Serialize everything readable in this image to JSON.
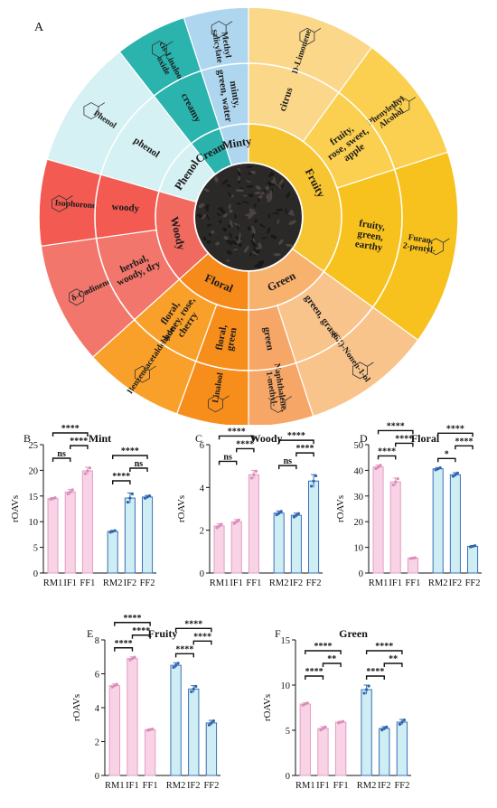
{
  "panel_a_letter": "A",
  "wheel": {
    "segments": [
      {
        "category": "Fruity",
        "color": "#f7c531",
        "compounds": [
          {
            "name": "D-Limonene",
            "descriptor": "citrus",
            "color": "#fbd78a"
          },
          {
            "name": "Phenylethyl Alcohol",
            "descriptor": "fruity, rose, sweet, apple",
            "color": "#fbd050"
          },
          {
            "name": "Furan, 2-pentyl-",
            "descriptor": "fruity, green, earthy",
            "color": "#f8c21e"
          }
        ]
      },
      {
        "category": "Green",
        "color": "#f7b26e",
        "compounds": [
          {
            "name": "(6Z)-Nonen-1-ol",
            "descriptor": "green, grass",
            "color": "#f9c48b"
          },
          {
            "name": "Naphthalene, 1-methyl-",
            "descriptor": "green",
            "color": "#f6a666"
          }
        ]
      },
      {
        "category": "Floral",
        "color": "#f68a1a",
        "compounds": [
          {
            "name": "Linalool",
            "descriptor": "floral, green",
            "color": "#f78e1c"
          },
          {
            "name": "Benzeneacetaldehyde",
            "descriptor": "floral, honey, rose, cherry",
            "color": "#f9a02a"
          }
        ]
      },
      {
        "category": "Woody",
        "color": "#f16a60",
        "compounds": [
          {
            "name": "δ-Cadinene",
            "descriptor": "herbal, woody, dry",
            "color": "#f2766b"
          },
          {
            "name": "Isophorone",
            "descriptor": "woody",
            "color": "#f25a52"
          }
        ]
      },
      {
        "category": "Phenol",
        "color": "#d6f1f3",
        "compounds": [
          {
            "name": "Phenol",
            "descriptor": "phenol",
            "color": "#d6f1f3"
          }
        ]
      },
      {
        "category": "Creamy",
        "color": "#2bb3ae",
        "compounds": [
          {
            "name": "cis-Linalool oxide",
            "descriptor": "creamy",
            "color": "#2bb3ae"
          }
        ]
      },
      {
        "category": "Minty",
        "color": "#aed7ef",
        "compounds": [
          {
            "name": "Methyl salicylate",
            "descriptor": "minty, green, water",
            "color": "#aed7ef"
          }
        ]
      }
    ]
  },
  "chart_data": [
    {
      "panel": "B",
      "title": "Mint",
      "type": "bar",
      "ylabel": "rOAVs",
      "ylim": [
        0,
        25
      ],
      "yticks": [
        0,
        5,
        10,
        15,
        20,
        25
      ],
      "categories": [
        "RM1",
        "IF1",
        "FF1",
        "RM2",
        "IF2",
        "FF2"
      ],
      "series": [
        {
          "values": [
            14.5,
            15.8,
            19.9,
            8.1,
            14.6,
            14.8
          ],
          "errors": [
            0.2,
            0.5,
            0.7,
            0.2,
            1.0,
            0.3
          ]
        }
      ],
      "significance": [
        {
          "pair": [
            "RM1",
            "IF1"
          ],
          "label": "ns"
        },
        {
          "pair": [
            "RM1",
            "FF1"
          ],
          "label": "****"
        },
        {
          "pair": [
            "IF1",
            "FF1"
          ],
          "label": "****"
        },
        {
          "pair": [
            "RM2",
            "IF2"
          ],
          "label": "****"
        },
        {
          "pair": [
            "RM2",
            "FF2"
          ],
          "label": "****"
        },
        {
          "pair": [
            "IF2",
            "FF2"
          ],
          "label": "ns"
        }
      ]
    },
    {
      "panel": "C",
      "title": "Woody",
      "type": "bar",
      "ylabel": "rOAVs",
      "ylim": [
        0,
        6
      ],
      "yticks": [
        0,
        2,
        4,
        6
      ],
      "categories": [
        "RM1",
        "IF1",
        "FF1",
        "RM2",
        "IF2",
        "FF2"
      ],
      "series": [
        {
          "values": [
            2.2,
            2.4,
            4.6,
            2.8,
            2.7,
            4.3
          ],
          "errors": [
            0.1,
            0.1,
            0.2,
            0.1,
            0.1,
            0.3
          ]
        }
      ],
      "significance": [
        {
          "pair": [
            "RM1",
            "IF1"
          ],
          "label": "ns"
        },
        {
          "pair": [
            "RM1",
            "FF1"
          ],
          "label": "****"
        },
        {
          "pair": [
            "IF1",
            "FF1"
          ],
          "label": "****"
        },
        {
          "pair": [
            "RM2",
            "IF2"
          ],
          "label": "ns"
        },
        {
          "pair": [
            "RM2",
            "FF2"
          ],
          "label": "****"
        },
        {
          "pair": [
            "IF2",
            "FF2"
          ],
          "label": "****"
        }
      ]
    },
    {
      "panel": "D",
      "title": "Floral",
      "type": "bar",
      "ylabel": "rOAVs",
      "ylim": [
        0,
        50
      ],
      "yticks": [
        0,
        10,
        20,
        30,
        40,
        50
      ],
      "categories": [
        "RM1",
        "IF1",
        "FF1",
        "RM2",
        "IF2",
        "FF2"
      ],
      "series": [
        {
          "values": [
            41.3,
            35.5,
            5.8,
            40.6,
            38.3,
            10.4
          ],
          "errors": [
            0.8,
            1.5,
            0.2,
            0.5,
            0.8,
            0.3
          ]
        }
      ],
      "significance": [
        {
          "pair": [
            "RM1",
            "IF1"
          ],
          "label": "****"
        },
        {
          "pair": [
            "RM1",
            "FF1"
          ],
          "label": "****"
        },
        {
          "pair": [
            "IF1",
            "FF1"
          ],
          "label": "****"
        },
        {
          "pair": [
            "RM2",
            "IF2"
          ],
          "label": "*"
        },
        {
          "pair": [
            "RM2",
            "FF2"
          ],
          "label": "****"
        },
        {
          "pair": [
            "IF2",
            "FF2"
          ],
          "label": "****"
        }
      ]
    },
    {
      "panel": "E",
      "title": "Fruity",
      "type": "bar",
      "ylabel": "rOAVs",
      "ylim": [
        0,
        8
      ],
      "yticks": [
        0,
        2,
        4,
        6,
        8
      ],
      "categories": [
        "RM1",
        "IF1",
        "FF1",
        "RM2",
        "IF2",
        "FF2"
      ],
      "series": [
        {
          "values": [
            5.3,
            6.9,
            2.7,
            6.5,
            5.1,
            3.1
          ],
          "errors": [
            0.1,
            0.1,
            0.05,
            0.15,
            0.2,
            0.15
          ]
        }
      ],
      "significance": [
        {
          "pair": [
            "RM1",
            "IF1"
          ],
          "label": "****"
        },
        {
          "pair": [
            "RM1",
            "FF1"
          ],
          "label": "****"
        },
        {
          "pair": [
            "IF1",
            "FF1"
          ],
          "label": "****"
        },
        {
          "pair": [
            "RM2",
            "IF2"
          ],
          "label": "****"
        },
        {
          "pair": [
            "RM2",
            "FF2"
          ],
          "label": "****"
        },
        {
          "pair": [
            "IF2",
            "FF2"
          ],
          "label": "****"
        }
      ]
    },
    {
      "panel": "F",
      "title": "Green",
      "type": "bar",
      "ylabel": "rOAVs",
      "ylim": [
        0,
        15
      ],
      "yticks": [
        0,
        5,
        10,
        15
      ],
      "categories": [
        "RM1",
        "IF1",
        "FF1",
        "RM2",
        "IF2",
        "FF2"
      ],
      "series": [
        {
          "values": [
            7.9,
            5.2,
            5.9,
            9.5,
            5.2,
            5.9
          ],
          "errors": [
            0.15,
            0.2,
            0.1,
            0.5,
            0.2,
            0.3
          ]
        }
      ],
      "significance": [
        {
          "pair": [
            "RM1",
            "IF1"
          ],
          "label": "****"
        },
        {
          "pair": [
            "RM1",
            "FF1"
          ],
          "label": "****"
        },
        {
          "pair": [
            "IF1",
            "FF1"
          ],
          "label": "**"
        },
        {
          "pair": [
            "RM2",
            "IF2"
          ],
          "label": "****"
        },
        {
          "pair": [
            "RM2",
            "FF2"
          ],
          "label": "****"
        },
        {
          "pair": [
            "IF2",
            "FF2"
          ],
          "label": "**"
        }
      ]
    }
  ],
  "colors": {
    "group1_fill": "#f8d3e6",
    "group1_edge": "#e59cc5",
    "group2_fill": "#cfeef4",
    "group2_edge": "#3b6fb6",
    "point1": "#d98cb8",
    "point2": "#2f63ad"
  }
}
